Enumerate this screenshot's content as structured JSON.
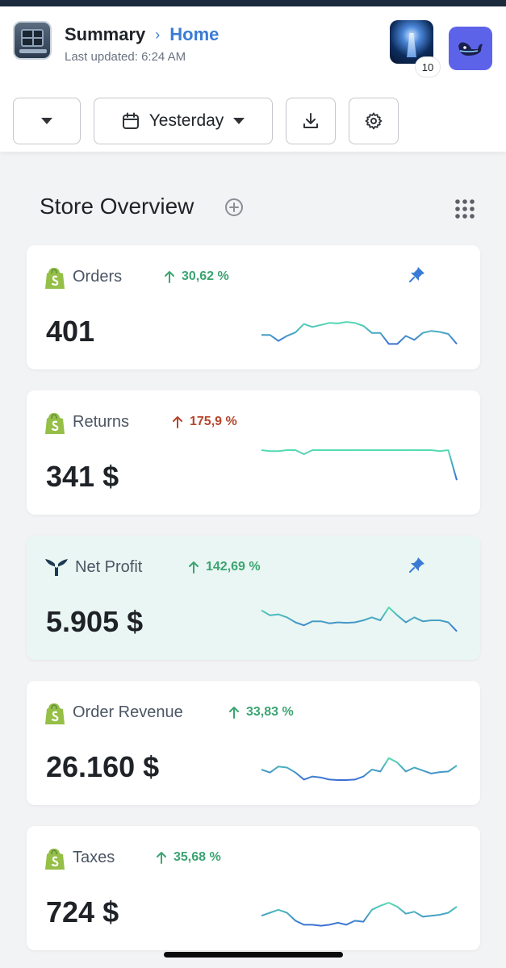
{
  "header": {
    "title": "Summary",
    "breadcrumb_current": "Home",
    "last_updated": "Last updated: 6:24 AM",
    "notification_count": "10"
  },
  "controls": {
    "date_range": "Yesterday"
  },
  "section": {
    "title": "Store Overview"
  },
  "colors": {
    "accent": "#3a7bd5",
    "positive": "#3ba472",
    "negative": "#b5462b",
    "shopify": "#95bf47",
    "highlight_card": "#eaf6f3"
  },
  "cards": [
    {
      "name": "Orders",
      "change": "30,62 %",
      "direction": "up",
      "value": "401",
      "pinned": true,
      "icon": "shopify-icon",
      "sparkline": [
        40,
        40,
        28,
        38,
        45,
        62,
        56,
        60,
        64,
        63,
        66,
        64,
        58,
        44,
        44,
        22,
        22,
        38,
        30,
        44,
        48,
        46,
        42,
        22
      ]
    },
    {
      "name": "Returns",
      "change": "175,9 %",
      "direction": "down",
      "value": "341 $",
      "pinned": false,
      "icon": "shopify-icon",
      "sparkline": [
        100,
        98,
        98,
        100,
        100,
        92,
        100,
        100,
        100,
        100,
        100,
        100,
        100,
        100,
        100,
        100,
        100,
        100,
        100,
        100,
        100,
        98,
        100,
        40
      ]
    },
    {
      "name": "Net Profit",
      "change": "142,69 %",
      "direction": "up",
      "value": "5.905 $",
      "pinned": true,
      "icon": "triple-whale-icon",
      "sparkline": [
        70,
        60,
        62,
        56,
        46,
        40,
        48,
        48,
        44,
        46,
        45,
        46,
        50,
        56,
        50,
        76,
        60,
        46,
        56,
        48,
        50,
        50,
        46,
        28
      ]
    },
    {
      "name": "Order Revenue",
      "change": "33,83 %",
      "direction": "up",
      "value": "26.160 $",
      "pinned": false,
      "icon": "shopify-icon",
      "sparkline": [
        42,
        36,
        48,
        46,
        36,
        22,
        28,
        26,
        22,
        21,
        21,
        22,
        28,
        42,
        38,
        65,
        56,
        38,
        46,
        40,
        34,
        37,
        38,
        50
      ]
    },
    {
      "name": "Taxes",
      "change": "35,68 %",
      "direction": "up",
      "value": "724 $",
      "pinned": false,
      "icon": "shopify-icon",
      "sparkline": [
        40,
        46,
        52,
        46,
        30,
        22,
        22,
        20,
        22,
        26,
        22,
        30,
        28,
        52,
        60,
        66,
        58,
        44,
        48,
        38,
        40,
        42,
        46,
        58
      ]
    }
  ]
}
